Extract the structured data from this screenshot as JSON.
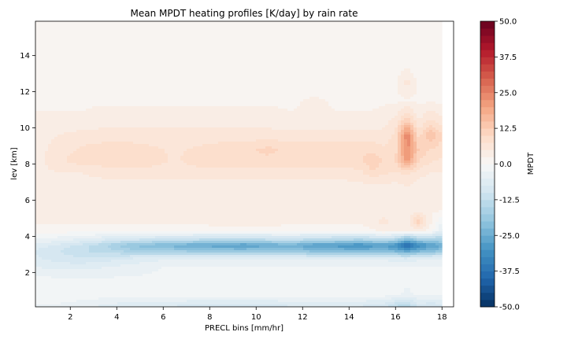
{
  "chart_data": {
    "type": "heatmap",
    "subtype": "filled-contour",
    "title": "Mean MPDT heating profiles [K/day] by rain rate",
    "xlabel": "PRECL bins [mm/hr]",
    "ylabel": "lev [km]",
    "xlim": [
      0.5,
      18.5
    ],
    "ylim": [
      0.1,
      15.9
    ],
    "data_x_extent": [
      0.5,
      18.0
    ],
    "xticks": [
      "2",
      "4",
      "6",
      "8",
      "10",
      "12",
      "14",
      "16",
      "18"
    ],
    "yticks": [
      "2",
      "4",
      "6",
      "8",
      "10",
      "12",
      "14"
    ],
    "grid": false,
    "colormap": "RdBu_r",
    "colorbar": {
      "label": "MPDT",
      "vmin": -50.0,
      "vmax": 50.0,
      "ticks": [
        "50.0",
        "37.5",
        "25.0",
        "12.5",
        "0.0",
        "-12.5",
        "-25.0",
        "-37.5",
        "-50.0"
      ]
    },
    "z_grid": {
      "x": [
        0.5,
        1.5,
        2.5,
        3.5,
        4.5,
        5.5,
        6.5,
        7.5,
        8.5,
        9.5,
        10.5,
        11.5,
        12.5,
        13.5,
        14.5,
        15.0,
        15.5,
        16.0,
        16.5,
        17.0,
        17.5,
        18.0
      ],
      "y": [
        0.1,
        0.8,
        1.6,
        2.3,
        2.8,
        3.2,
        3.5,
        3.8,
        4.3,
        4.8,
        5.5,
        6.5,
        7.5,
        8.2,
        8.8,
        9.6,
        10.4,
        11.5,
        12.5,
        13.5,
        14.5,
        15.9
      ],
      "z": [
        [
          -3,
          -3,
          -4,
          -6,
          -7,
          -7,
          -8,
          -9,
          -9,
          -9,
          -9,
          -8,
          -7,
          -7,
          -8,
          -9,
          -10,
          -13,
          -15,
          -9,
          -10,
          -9
        ],
        [
          -1,
          -1,
          -1,
          -1,
          -1,
          -1,
          -1,
          -1,
          -1,
          -1,
          -1,
          -1,
          -1,
          -1,
          -1,
          -1,
          -1,
          -2,
          -3,
          -2,
          -2,
          -2
        ],
        [
          -1,
          -2,
          -2,
          -2,
          -2,
          -2,
          -1,
          -1,
          -1,
          -1,
          -1,
          -1,
          -1,
          -1,
          -1,
          -1,
          -1,
          -1,
          -2,
          -1,
          -1,
          -1
        ],
        [
          -5,
          -6,
          -6,
          -5,
          -4,
          -3,
          -2,
          -2,
          -2,
          -2,
          -2,
          -2,
          -2,
          -2,
          -2,
          -2,
          -2,
          -2,
          -2,
          -2,
          -2,
          -2
        ],
        [
          -7,
          -9,
          -10,
          -9,
          -8,
          -6,
          -6,
          -6,
          -6,
          -6,
          -6,
          -6,
          -6,
          -6,
          -6,
          -6,
          -6,
          -7,
          -8,
          -6,
          -6,
          -5
        ],
        [
          -8,
          -10,
          -12,
          -14,
          -16,
          -17,
          -18,
          -19,
          -20,
          -20,
          -19,
          -19,
          -22,
          -22,
          -24,
          -22,
          -22,
          -24,
          -28,
          -24,
          -22,
          -20
        ],
        [
          -6,
          -8,
          -11,
          -15,
          -20,
          -22,
          -24,
          -26,
          -27,
          -28,
          -26,
          -24,
          -28,
          -29,
          -31,
          -29,
          -28,
          -30,
          -40,
          -32,
          -28,
          -26
        ],
        [
          -3,
          -4,
          -6,
          -8,
          -10,
          -11,
          -12,
          -13,
          -14,
          -14,
          -13,
          -12,
          -14,
          -15,
          -16,
          -15,
          -14,
          -16,
          -24,
          -18,
          -18,
          -16
        ],
        [
          1,
          1,
          1,
          1,
          1,
          1,
          1,
          1,
          1,
          1,
          1,
          1,
          1,
          1,
          1,
          2,
          3,
          3,
          3,
          3,
          2,
          -6
        ],
        [
          3,
          3,
          3,
          3,
          3,
          3,
          3,
          3,
          4,
          5,
          4,
          3,
          3,
          3,
          3,
          4,
          6,
          4,
          4,
          12,
          3,
          -2
        ],
        [
          3,
          3,
          3,
          3,
          3,
          3,
          3,
          3,
          3,
          3,
          3,
          3,
          3,
          3,
          3,
          3,
          3,
          3,
          4,
          3,
          3,
          3
        ],
        [
          3,
          3,
          3,
          3,
          3,
          3,
          3,
          3,
          3,
          3,
          3,
          3,
          3,
          3,
          3,
          3,
          3,
          3,
          4,
          3,
          3,
          3
        ],
        [
          4,
          5,
          5,
          6,
          6,
          6,
          6,
          6,
          6,
          6,
          6,
          6,
          6,
          6,
          7,
          9,
          8,
          7,
          8,
          6,
          5,
          5
        ],
        [
          4,
          7,
          9,
          9,
          9,
          9,
          7,
          9,
          9,
          9,
          9,
          9,
          9,
          9,
          9,
          13,
          9,
          10,
          22,
          10,
          8,
          7
        ],
        [
          4,
          6,
          8,
          9,
          9,
          8,
          7,
          8,
          9,
          9,
          11,
          9,
          9,
          10,
          10,
          9,
          8,
          9,
          24,
          12,
          10,
          9
        ],
        [
          4,
          5,
          6,
          6,
          6,
          6,
          6,
          6,
          6,
          6,
          6,
          6,
          6,
          6,
          6,
          6,
          6,
          8,
          25,
          9,
          15,
          10
        ],
        [
          3,
          3,
          3,
          4,
          4,
          4,
          4,
          4,
          4,
          4,
          4,
          3,
          3,
          3,
          3,
          3,
          4,
          6,
          12,
          5,
          8,
          6
        ],
        [
          2,
          2,
          2,
          2,
          2,
          2,
          2,
          2,
          2,
          2,
          2,
          2,
          3,
          2,
          2,
          2,
          2,
          2,
          2,
          2,
          2,
          2
        ],
        [
          2,
          2,
          1,
          1,
          1,
          1,
          1,
          1,
          1,
          1,
          1,
          1,
          1,
          1,
          1,
          1,
          1,
          2,
          6,
          2,
          1,
          1
        ],
        [
          0,
          0,
          0,
          0,
          0,
          0,
          0,
          0,
          0,
          0,
          0,
          0,
          0,
          0,
          0,
          0,
          0,
          1,
          2,
          0,
          0,
          0
        ],
        [
          0,
          0,
          0,
          0,
          0,
          0,
          0,
          0,
          0,
          0,
          0,
          0,
          0,
          0,
          0,
          0,
          0,
          0,
          1,
          0,
          0,
          0
        ],
        [
          0,
          0,
          0,
          0,
          0,
          0,
          0,
          0,
          0,
          0,
          0,
          0,
          0,
          0,
          0,
          0,
          0,
          0,
          1,
          0,
          0,
          0
        ]
      ]
    }
  }
}
